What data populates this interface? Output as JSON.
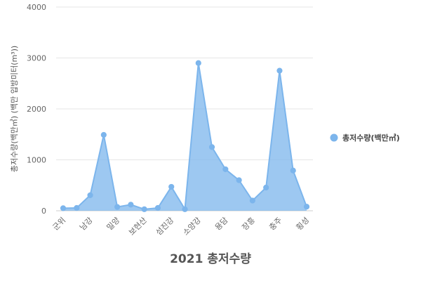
{
  "chart_data": {
    "type": "area",
    "title": "2021 총저수량",
    "ylabel": "총저수량(백만㎥) (백만 입방미터(m³))",
    "xlabel": "",
    "ylim": [
      0,
      4000
    ],
    "yticks": [
      "0",
      "1000",
      "2000",
      "3000",
      "4000"
    ],
    "ytick_values": [
      0,
      1000,
      2000,
      3000,
      4000
    ],
    "grid": true,
    "legend_position": "right",
    "categories": [
      "군위",
      "",
      "남강",
      "",
      "밀양",
      "",
      "보현산",
      "",
      "섬진강",
      "",
      "소양강",
      "",
      "용담",
      "",
      "장흥",
      "",
      "충주",
      "",
      "횡성"
    ],
    "series": [
      {
        "name": "총저수량(백만㎥)",
        "color": "#7cb5ec",
        "values": [
          50,
          55,
          305,
          1490,
          75,
          120,
          30,
          55,
          470,
          30,
          2900,
          1250,
          815,
          600,
          200,
          455,
          2750,
          790,
          80
        ]
      }
    ]
  }
}
